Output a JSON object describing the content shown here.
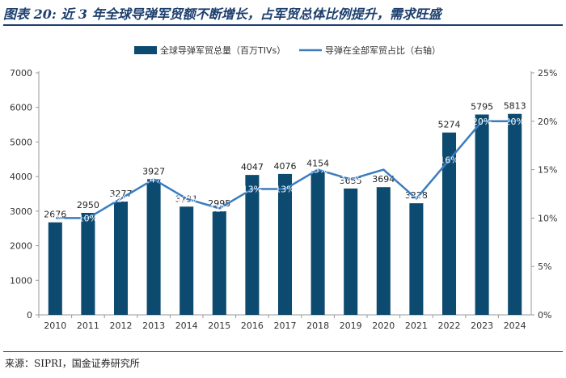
{
  "figure": {
    "title": "图表 20: 近 3 年全球导弹军贸额不断增长，占军贸总体比例提升，需求旺盛",
    "source": "来源：SIPRI，国金证券研究所"
  },
  "colors": {
    "bar": "#0d4a70",
    "line": "#3a7cc0",
    "axis": "#999999"
  },
  "chart_data": {
    "type": "bar",
    "title": "",
    "categories": [
      "2010",
      "2011",
      "2012",
      "2013",
      "2014",
      "2015",
      "2016",
      "2017",
      "2018",
      "2019",
      "2020",
      "2021",
      "2022",
      "2023",
      "2024"
    ],
    "series": [
      {
        "name": "全球导弹军贸总量（百万TIVs）",
        "type": "bar",
        "axis": "left",
        "values": [
          2676,
          2950,
          3277,
          3927,
          3131,
          2995,
          4047,
          4076,
          4154,
          3655,
          3694,
          3228,
          5274,
          5795,
          5813
        ]
      },
      {
        "name": "导弹在全部军贸占比（右轴）",
        "type": "line",
        "axis": "right",
        "values": [
          10,
          10,
          12,
          14,
          12,
          11,
          13,
          13,
          15,
          14,
          15,
          12,
          16,
          20,
          20
        ]
      }
    ],
    "left_axis": {
      "min": 0,
      "max": 7000,
      "step": 1000,
      "ticks": [
        "0",
        "1000",
        "2000",
        "3000",
        "4000",
        "5000",
        "6000",
        "7000"
      ]
    },
    "right_axis": {
      "min": 0,
      "max": 25,
      "step": 5,
      "ticks": [
        "0%",
        "5%",
        "10%",
        "15%",
        "20%",
        "25%"
      ]
    },
    "bar_labels": [
      "2676",
      "2950",
      "3277",
      "3927",
      "3131",
      "2995",
      "4047",
      "4076",
      "4154",
      "3655",
      "3694",
      "3228",
      "5274",
      "5795",
      "5813"
    ],
    "pct_labels": [
      "10%",
      "10%",
      "12%",
      "14%",
      "12%",
      "11%",
      "13%",
      "13%",
      "15%",
      "14%",
      "",
      "12%",
      "16%",
      "20%",
      "20%"
    ],
    "legend": {
      "position": "top",
      "entries": [
        "全球导弹军贸总量（百万TIVs）",
        "导弹在全部军贸占比（右轴）"
      ]
    }
  }
}
